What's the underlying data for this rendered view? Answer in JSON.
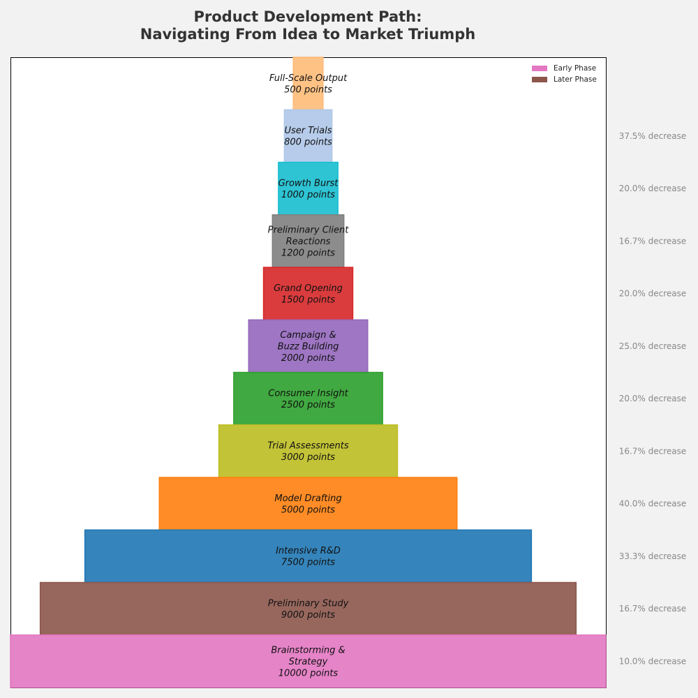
{
  "chart_data": {
    "type": "funnel",
    "title": "Product Development Path:\nNavigating From Idea to Market Triumph",
    "title_lines": [
      "Product Development Path:",
      "Navigating From Idea to Market Triumph"
    ],
    "unit_label": "points",
    "change_suffix": "decrease",
    "stages": [
      {
        "label": "Full-Scale Output",
        "value": 500,
        "color": "#ffbb78"
      },
      {
        "label": "User Trials",
        "value": 800,
        "color": "#aec7e8"
      },
      {
        "label": "Growth Burst",
        "value": 1000,
        "color": "#17becf"
      },
      {
        "label": "Preliminary Client Reactions",
        "value": 1200,
        "color": "#7f7f7f"
      },
      {
        "label": "Grand Opening",
        "value": 1500,
        "color": "#d62728"
      },
      {
        "label": "Campaign & Buzz Building",
        "value": 2000,
        "color": "#9467bd"
      },
      {
        "label": "Consumer Insight",
        "value": 2500,
        "color": "#2ca02c"
      },
      {
        "label": "Trial Assessments",
        "value": 3000,
        "color": "#bcbd22"
      },
      {
        "label": "Model Drafting",
        "value": 5000,
        "color": "#ff7f0e"
      },
      {
        "label": "Intensive R&D",
        "value": 7500,
        "color": "#1f77b4"
      },
      {
        "label": "Preliminary Study",
        "value": 9000,
        "color": "#8c564b"
      },
      {
        "label": "Brainstorming & Strategy",
        "value": 10000,
        "color": "#e377c2"
      }
    ],
    "stage_label_lines": {
      "Preliminary Client Reactions": [
        "Preliminary Client",
        "Reactions"
      ],
      "Campaign & Buzz Building": [
        "Campaign &",
        "Buzz Building"
      ],
      "Brainstorming & Strategy": [
        "Brainstorming &",
        "Strategy"
      ]
    },
    "changes": [
      "37.5% decrease",
      "20.0% decrease",
      "16.7% decrease",
      "20.0% decrease",
      "25.0% decrease",
      "20.0% decrease",
      "16.7% decrease",
      "40.0% decrease",
      "33.3% decrease",
      "16.7% decrease",
      "10.0% decrease"
    ],
    "legend": {
      "placement": "top-right",
      "entries": [
        {
          "name": "Early Phase",
          "color": "#e377c2"
        },
        {
          "name": "Later Phase",
          "color": "#8c564b"
        }
      ]
    },
    "grid": false
  }
}
